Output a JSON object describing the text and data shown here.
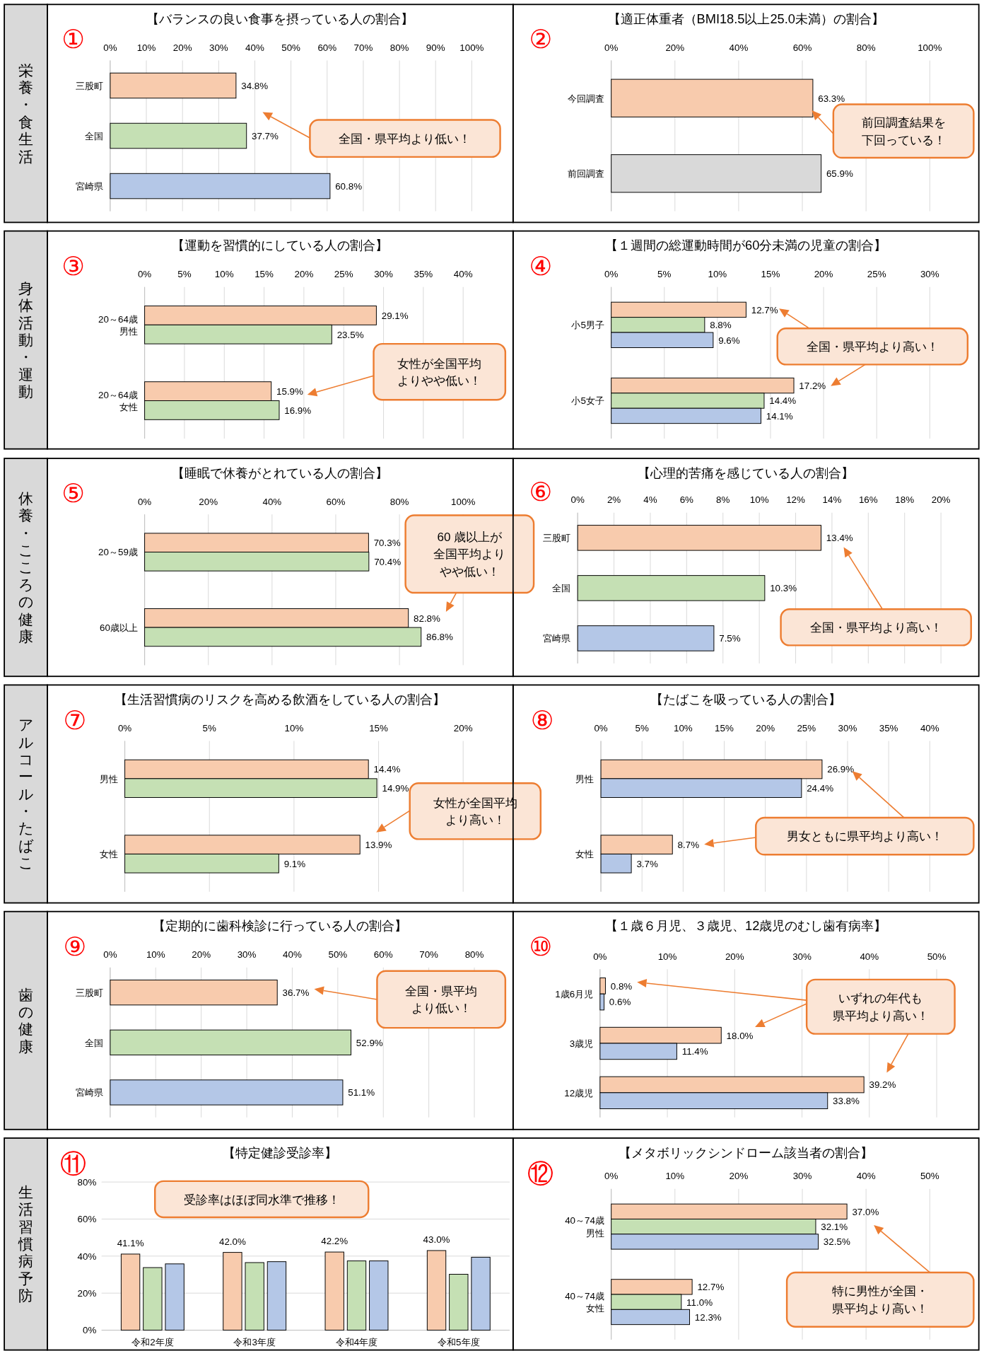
{
  "chart_data": [
    {
      "type": "bar",
      "orientation": "horizontal",
      "title": "【バランスの良い食事を摂っている人の割合】",
      "categories": [
        "三股町",
        "全国",
        "宮崎県"
      ],
      "values": [
        34.8,
        37.7,
        60.8
      ],
      "colors": [
        "#f8cbad",
        "#c5e0b4",
        "#b4c7e7"
      ],
      "value_labels": [
        "34.8%",
        "37.7%",
        "60.8%"
      ],
      "xlim": [
        0,
        100
      ],
      "xticks": [
        {
          "value": 0,
          "label": "0%"
        },
        {
          "value": 10,
          "label": "10%"
        },
        {
          "value": 20,
          "label": "20%"
        },
        {
          "value": 30,
          "label": "30%"
        },
        {
          "value": 40,
          "label": "40%"
        },
        {
          "value": 50,
          "label": "50%"
        },
        {
          "value": 60,
          "label": "60%"
        },
        {
          "value": 70,
          "label": "70%"
        },
        {
          "value": 80,
          "label": "80%"
        },
        {
          "value": 90,
          "label": "90%"
        },
        {
          "value": 100,
          "label": "100%"
        }
      ],
      "grid": "x",
      "annotations": [
        "①",
        "全国・県平均より低い！",
        "栄養・食生活"
      ]
    },
    {
      "type": "bar",
      "orientation": "horizontal",
      "title": "【適正体重者（BMI18.5以上25.0未満）の割合】",
      "categories": [
        "今回調査",
        "前回調査"
      ],
      "values": [
        63.3,
        65.9
      ],
      "colors": [
        "#f8cbad",
        "#d9d9d9"
      ],
      "value_labels": [
        "63.3%",
        "65.9%"
      ],
      "xlim": [
        0,
        100
      ],
      "xticks": [
        {
          "value": 0,
          "label": "0%"
        },
        {
          "value": 20,
          "label": "20%"
        },
        {
          "value": 40,
          "label": "40%"
        },
        {
          "value": 60,
          "label": "60%"
        },
        {
          "value": 80,
          "label": "80%"
        },
        {
          "value": 100,
          "label": "100%"
        }
      ],
      "grid": "x",
      "annotations": [
        "②",
        "前回調査結果を下回っている！"
      ]
    },
    {
      "type": "bar",
      "orientation": "horizontal",
      "title": "【運動を習慣的にしている人の割合】",
      "categories": [
        "20～64歳男性",
        "20～64歳女性"
      ],
      "series": [
        {
          "color": "#f8cbad",
          "values": [
            29.1,
            15.9
          ],
          "value_labels": [
            "29.1%",
            "15.9%"
          ]
        },
        {
          "color": "#c5e0b4",
          "values": [
            23.5,
            16.9
          ],
          "value_labels": [
            "23.5%",
            "16.9%"
          ]
        }
      ],
      "xlim": [
        0,
        40
      ],
      "xticks": [
        {
          "value": 0,
          "label": "0%"
        },
        {
          "value": 5,
          "label": "5%"
        },
        {
          "value": 10,
          "label": "10%"
        },
        {
          "value": 15,
          "label": "15%"
        },
        {
          "value": 20,
          "label": "20%"
        },
        {
          "value": 25,
          "label": "25%"
        },
        {
          "value": 30,
          "label": "30%"
        },
        {
          "value": 35,
          "label": "35%"
        },
        {
          "value": 40,
          "label": "40%"
        }
      ],
      "grid": "x",
      "annotations": [
        "③",
        "女性が全国平均よりやや低い！",
        "身体活動・運動"
      ]
    },
    {
      "type": "bar",
      "orientation": "horizontal",
      "title": "【１週間の総運動時間が60分未満の児童の割合】",
      "categories": [
        "小5男子",
        "小5女子"
      ],
      "series": [
        {
          "color": "#f8cbad",
          "values": [
            12.7,
            17.2
          ],
          "value_labels": [
            "12.7%",
            "17.2%"
          ]
        },
        {
          "color": "#c5e0b4",
          "values": [
            8.8,
            14.4
          ],
          "value_labels": [
            "8.8%",
            "14.4%"
          ]
        },
        {
          "color": "#b4c7e7",
          "values": [
            9.6,
            14.1
          ],
          "value_labels": [
            "9.6%",
            "14.1%"
          ]
        }
      ],
      "xlim": [
        0,
        30
      ],
      "xticks": [
        {
          "value": 0,
          "label": "0%"
        },
        {
          "value": 5,
          "label": "5%"
        },
        {
          "value": 10,
          "label": "10%"
        },
        {
          "value": 15,
          "label": "15%"
        },
        {
          "value": 20,
          "label": "20%"
        },
        {
          "value": 25,
          "label": "25%"
        },
        {
          "value": 30,
          "label": "30%"
        }
      ],
      "grid": "x",
      "annotations": [
        "④",
        "全国・県平均より高い！"
      ]
    },
    {
      "type": "bar",
      "orientation": "horizontal",
      "title": "【睡眠で休養がとれている人の割合】",
      "categories": [
        "20～59歳",
        "60歳以上"
      ],
      "series": [
        {
          "color": "#f8cbad",
          "values": [
            70.3,
            82.8
          ],
          "value_labels": [
            "70.3%",
            "82.8%"
          ]
        },
        {
          "color": "#c5e0b4",
          "values": [
            70.4,
            86.8
          ],
          "value_labels": [
            "70.4%",
            "86.8%"
          ]
        }
      ],
      "xlim": [
        0,
        100
      ],
      "xticks": [
        {
          "value": 0,
          "label": "0%"
        },
        {
          "value": 20,
          "label": "20%"
        },
        {
          "value": 40,
          "label": "40%"
        },
        {
          "value": 60,
          "label": "60%"
        },
        {
          "value": 80,
          "label": "80%"
        },
        {
          "value": 100,
          "label": "100%"
        }
      ],
      "grid": "x",
      "annotations": [
        "⑤",
        "60 歳以上が全国平均よりやや低い！",
        "休養・こころの健康"
      ]
    },
    {
      "type": "bar",
      "orientation": "horizontal",
      "title": "【心理的苦痛を感じている人の割合】",
      "categories": [
        "三股町",
        "全国",
        "宮崎県"
      ],
      "values": [
        13.4,
        10.3,
        7.5
      ],
      "colors": [
        "#f8cbad",
        "#c5e0b4",
        "#b4c7e7"
      ],
      "value_labels": [
        "13.4%",
        "10.3%",
        "7.5%"
      ],
      "xlim": [
        0,
        20
      ],
      "xticks": [
        {
          "value": 0,
          "label": "0%"
        },
        {
          "value": 2,
          "label": "2%"
        },
        {
          "value": 4,
          "label": "4%"
        },
        {
          "value": 6,
          "label": "6%"
        },
        {
          "value": 8,
          "label": "8%"
        },
        {
          "value": 10,
          "label": "10%"
        },
        {
          "value": 12,
          "label": "12%"
        },
        {
          "value": 14,
          "label": "14%"
        },
        {
          "value": 16,
          "label": "16%"
        },
        {
          "value": 18,
          "label": "18%"
        },
        {
          "value": 20,
          "label": "20%"
        }
      ],
      "grid": "x",
      "annotations": [
        "⑥",
        "全国・県平均より高い！"
      ]
    },
    {
      "type": "bar",
      "orientation": "horizontal",
      "title": "【生活習慣病のリスクを高める飲酒をしている人の割合】",
      "categories": [
        "男性",
        "女性"
      ],
      "series": [
        {
          "color": "#f8cbad",
          "values": [
            14.4,
            13.9
          ],
          "value_labels": [
            "14.4%",
            "13.9%"
          ]
        },
        {
          "color": "#c5e0b4",
          "values": [
            14.9,
            9.1
          ],
          "value_labels": [
            "14.9%",
            "9.1%"
          ]
        }
      ],
      "xlim": [
        0,
        20
      ],
      "xticks": [
        {
          "value": 0,
          "label": "0%"
        },
        {
          "value": 5,
          "label": "5%"
        },
        {
          "value": 10,
          "label": "10%"
        },
        {
          "value": 15,
          "label": "15%"
        },
        {
          "value": 20,
          "label": "20%"
        }
      ],
      "grid": "x",
      "annotations": [
        "⑦",
        "女性が全国平均より高い！",
        "アルコール・たばこ"
      ]
    },
    {
      "type": "bar",
      "orientation": "horizontal",
      "title": "【たばこを吸っている人の割合】",
      "categories": [
        "男性",
        "女性"
      ],
      "series": [
        {
          "color": "#f8cbad",
          "values": [
            26.9,
            8.7
          ],
          "value_labels": [
            "26.9%",
            "8.7%"
          ]
        },
        {
          "color": "#b4c7e7",
          "values": [
            24.4,
            3.7
          ],
          "value_labels": [
            "24.4%",
            "3.7%"
          ]
        }
      ],
      "xlim": [
        0,
        40
      ],
      "xticks": [
        {
          "value": 0,
          "label": "0%"
        },
        {
          "value": 5,
          "label": "5%"
        },
        {
          "value": 10,
          "label": "10%"
        },
        {
          "value": 15,
          "label": "15%"
        },
        {
          "value": 20,
          "label": "20%"
        },
        {
          "value": 25,
          "label": "25%"
        },
        {
          "value": 30,
          "label": "30%"
        },
        {
          "value": 35,
          "label": "35%"
        },
        {
          "value": 40,
          "label": "40%"
        }
      ],
      "grid": "x",
      "annotations": [
        "⑧",
        "男女ともに県平均より高い！"
      ]
    },
    {
      "type": "bar",
      "orientation": "horizontal",
      "title": "【定期的に歯科検診に行っている人の割合】",
      "categories": [
        "三股町",
        "全国",
        "宮崎県"
      ],
      "values": [
        36.7,
        52.9,
        51.1
      ],
      "colors": [
        "#f8cbad",
        "#c5e0b4",
        "#b4c7e7"
      ],
      "value_labels": [
        "36.7%",
        "52.9%",
        "51.1%"
      ],
      "xlim": [
        0,
        80
      ],
      "xticks": [
        {
          "value": 0,
          "label": "0%"
        },
        {
          "value": 10,
          "label": "10%"
        },
        {
          "value": 20,
          "label": "20%"
        },
        {
          "value": 30,
          "label": "30%"
        },
        {
          "value": 40,
          "label": "40%"
        },
        {
          "value": 50,
          "label": "50%"
        },
        {
          "value": 60,
          "label": "60%"
        },
        {
          "value": 70,
          "label": "70%"
        },
        {
          "value": 80,
          "label": "80%"
        }
      ],
      "grid": "x",
      "annotations": [
        "⑨",
        "全国・県平均より低い！",
        "歯の健康"
      ]
    },
    {
      "type": "bar",
      "orientation": "horizontal",
      "title": "【１歳６月児、３歳児、12歳児のむし歯有病率】",
      "categories": [
        "1歳6月児",
        "3歳児",
        "12歳児"
      ],
      "series": [
        {
          "color": "#f8cbad",
          "values": [
            0.8,
            18.0,
            39.2
          ],
          "value_labels": [
            "0.8%",
            "18.0%",
            "39.2%"
          ]
        },
        {
          "color": "#b4c7e7",
          "values": [
            0.6,
            11.4,
            33.8
          ],
          "value_labels": [
            "0.6%",
            "11.4%",
            "33.8%"
          ]
        }
      ],
      "xlim": [
        0,
        50
      ],
      "xticks": [
        {
          "value": 0,
          "label": "0%"
        },
        {
          "value": 10,
          "label": "10%"
        },
        {
          "value": 20,
          "label": "20%"
        },
        {
          "value": 30,
          "label": "30%"
        },
        {
          "value": 40,
          "label": "40%"
        },
        {
          "value": 50,
          "label": "50%"
        }
      ],
      "grid": "x",
      "annotations": [
        "⑩",
        "いずれの年代も県平均より高い！"
      ]
    },
    {
      "type": "bar",
      "title": "【特定健診受診率】",
      "categories": [
        "令和2年度",
        "令和3年度",
        "令和4年度",
        "令和5年度"
      ],
      "series": [
        {
          "color": "#f8cbad",
          "values": [
            41.1,
            42.0,
            42.2,
            43.0
          ],
          "value_labels": [
            "41.1%",
            "42.0%",
            "42.2%",
            "43.0%"
          ]
        },
        {
          "color": "#c5e0b4",
          "values": [
            33.8,
            36.5,
            37.4,
            30.2
          ]
        },
        {
          "color": "#b4c7e7",
          "values": [
            35.8,
            37.0,
            37.4,
            39.4
          ]
        }
      ],
      "ylim": [
        0,
        80
      ],
      "yticks": [
        {
          "value": 0,
          "label": "0%"
        },
        {
          "value": 20,
          "label": "20%"
        },
        {
          "value": 40,
          "label": "40%"
        },
        {
          "value": 60,
          "label": "60%"
        },
        {
          "value": 80,
          "label": "80%"
        }
      ],
      "grid": "y",
      "annotations": [
        "⑪",
        "受診率はほぼ同水準で推移！",
        "生活習慣病予防"
      ]
    },
    {
      "type": "bar",
      "orientation": "horizontal",
      "title": "【メタボリックシンドローム該当者の割合】",
      "categories": [
        "40～74歳男性",
        "40～74歳女性"
      ],
      "series": [
        {
          "color": "#f8cbad",
          "values": [
            37.0,
            12.7
          ],
          "value_labels": [
            "37.0%",
            "12.7%"
          ]
        },
        {
          "color": "#c5e0b4",
          "values": [
            32.1,
            11.0
          ],
          "value_labels": [
            "32.1%",
            "11.0%"
          ]
        },
        {
          "color": "#b4c7e7",
          "values": [
            32.5,
            12.3
          ],
          "value_labels": [
            "32.5%",
            "12.3%"
          ]
        }
      ],
      "xlim": [
        0,
        50
      ],
      "xticks": [
        {
          "value": 0,
          "label": "0%"
        },
        {
          "value": 10,
          "label": "10%"
        },
        {
          "value": 20,
          "label": "20%"
        },
        {
          "value": 30,
          "label": "30%"
        },
        {
          "value": 40,
          "label": "40%"
        },
        {
          "value": 50,
          "label": "50%"
        }
      ],
      "grid": "x",
      "annotations": [
        "⑫",
        "特に男性が全国・県平均より高い！"
      ]
    }
  ]
}
